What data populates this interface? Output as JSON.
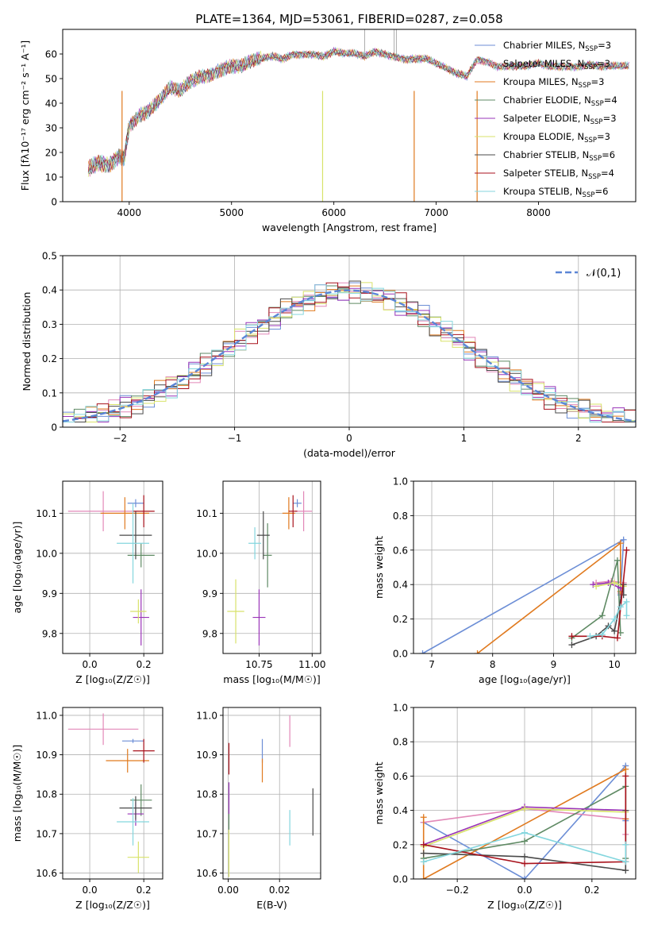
{
  "figure_title": "PLATE=1364, MJD=53061, FIBERID=0287, z=0.058",
  "models": [
    {
      "name": "Chabrier MILES",
      "nssp": "3",
      "color": "#6c8ed6"
    },
    {
      "name": "Salpeter MILES",
      "nssp": "3",
      "color": "#e288b8"
    },
    {
      "name": "Kroupa MILES",
      "nssp": "3",
      "color": "#e07a1f"
    },
    {
      "name": "Chabrier ELODIE",
      "nssp": "4",
      "color": "#5f8a64"
    },
    {
      "name": "Salpeter ELODIE",
      "nssp": "3",
      "color": "#9a34b8"
    },
    {
      "name": "Kroupa ELODIE",
      "nssp": "3",
      "color": "#d8e26a"
    },
    {
      "name": "Chabrier STELIB",
      "nssp": "6",
      "color": "#4a4a4a"
    },
    {
      "name": "Salpeter STELIB",
      "nssp": "4",
      "color": "#a8121c"
    },
    {
      "name": "Kroupa STELIB",
      "nssp": "6",
      "color": "#84d6de"
    }
  ],
  "legend_text": {
    "nssp_prefix": "N",
    "nssp_sub": "SSP",
    "eq": "="
  },
  "chart_data": [
    {
      "id": "spectrum",
      "type": "line",
      "xlabel": "wavelength [Angstrom, rest frame]",
      "ylabel": "Flux [fλ10⁻¹⁷ erg cm⁻² s⁻¹ A⁻¹]",
      "xlim": [
        3350,
        8950
      ],
      "ylim": [
        0,
        70
      ],
      "xticks": [
        4000,
        5000,
        6000,
        7000,
        8000
      ],
      "yticks": [
        0,
        10,
        20,
        30,
        40,
        50,
        60
      ],
      "grid": false,
      "legend": "top-right",
      "x": [
        3600,
        3700,
        3800,
        3900,
        3950,
        4000,
        4100,
        4200,
        4300,
        4400,
        4500,
        4600,
        4700,
        4800,
        4900,
        5000,
        5100,
        5200,
        5300,
        5400,
        5500,
        5600,
        5700,
        5800,
        5900,
        6000,
        6100,
        6200,
        6300,
        6400,
        6500,
        6600,
        6700,
        6800,
        6900,
        7000,
        7100,
        7200,
        7300,
        7400,
        7500,
        7600,
        7700,
        7800,
        7900,
        8000,
        8100,
        8200,
        8300,
        8400,
        8500,
        8600,
        8700,
        8800,
        8900
      ],
      "y": [
        13,
        16,
        15,
        19,
        18,
        31,
        35,
        37,
        41,
        46,
        45,
        49,
        51,
        52,
        54,
        55,
        55,
        57,
        58,
        59,
        58,
        60,
        60,
        60,
        59,
        61,
        60,
        60,
        59,
        61,
        60,
        59,
        58,
        58,
        58,
        56,
        54,
        52,
        51,
        58,
        57,
        55,
        55,
        55,
        55,
        56,
        55,
        55,
        55,
        55,
        56,
        55,
        55,
        55,
        55
      ]
    },
    {
      "id": "residuals",
      "type": "line",
      "xlabel": "(data-model)/error",
      "ylabel": "Normed distribution",
      "xlim": [
        -2.5,
        2.5
      ],
      "ylim": [
        0,
        0.5
      ],
      "xticks": [
        -2,
        -1,
        0,
        1,
        2
      ],
      "yticks": [
        0.0,
        0.1,
        0.2,
        0.3,
        0.4,
        0.5
      ],
      "grid": true,
      "legend": "top-right",
      "reference_label": "𝒩(0,1)",
      "x": [
        -2.5,
        -2.3,
        -2.1,
        -1.9,
        -1.7,
        -1.5,
        -1.3,
        -1.1,
        -0.9,
        -0.7,
        -0.5,
        -0.3,
        -0.1,
        0.1,
        0.3,
        0.5,
        0.7,
        0.9,
        1.1,
        1.3,
        1.5,
        1.7,
        1.9,
        2.1,
        2.3,
        2.5
      ],
      "y": [
        0.04,
        0.05,
        0.07,
        0.09,
        0.13,
        0.15,
        0.19,
        0.22,
        0.27,
        0.31,
        0.35,
        0.38,
        0.39,
        0.4,
        0.38,
        0.36,
        0.31,
        0.28,
        0.22,
        0.17,
        0.14,
        0.11,
        0.08,
        0.06,
        0.05,
        0.04
      ]
    },
    {
      "id": "age_vs_z",
      "type": "scatter",
      "xlabel": "Z [log₁₀(Z/Z☉)]",
      "ylabel": "age  [log₁₀(age/yr)]",
      "xlim": [
        -0.1,
        0.27
      ],
      "ylim": [
        9.75,
        10.18
      ],
      "xticks": [
        0.0,
        0.2
      ],
      "yticks": [
        9.8,
        9.9,
        10.0,
        10.1
      ],
      "grid": true,
      "points": [
        {
          "x": 0.17,
          "y": 10.125,
          "xerr": 0.03,
          "yerr": 0.01
        },
        {
          "x": 0.05,
          "y": 10.105,
          "xerr": 0.13,
          "yerr": 0.05
        },
        {
          "x": 0.13,
          "y": 10.1,
          "xerr": 0.09,
          "yerr": 0.04
        },
        {
          "x": 0.19,
          "y": 9.995,
          "xerr": 0.05,
          "yerr": 0.03
        },
        {
          "x": 0.19,
          "y": 9.84,
          "xerr": 0.03,
          "yerr": 0.07
        },
        {
          "x": 0.18,
          "y": 9.855,
          "xerr": 0.03,
          "yerr": 0.03
        },
        {
          "x": 0.17,
          "y": 10.045,
          "xerr": 0.06,
          "yerr": 0.06
        },
        {
          "x": 0.2,
          "y": 10.105,
          "xerr": 0.04,
          "yerr": 0.04
        },
        {
          "x": 0.16,
          "y": 10.025,
          "xerr": 0.06,
          "yerr": 0.1
        }
      ]
    },
    {
      "id": "age_vs_mass",
      "type": "scatter",
      "xlabel": "mass [log₁₀(M/M☉)]",
      "ylabel": "",
      "xlim": [
        10.58,
        11.04
      ],
      "ylim": [
        9.75,
        10.18
      ],
      "xticks": [
        10.75,
        11.0
      ],
      "yticks": [
        9.8,
        9.9,
        10.0,
        10.1
      ],
      "grid": true,
      "points": [
        {
          "x": 10.93,
          "y": 10.125,
          "xerr": 0.02,
          "yerr": 0.01
        },
        {
          "x": 10.96,
          "y": 10.105,
          "xerr": 0.04,
          "yerr": 0.05
        },
        {
          "x": 10.89,
          "y": 10.1,
          "xerr": 0.03,
          "yerr": 0.04
        },
        {
          "x": 10.79,
          "y": 9.995,
          "xerr": 0.02,
          "yerr": 0.08
        },
        {
          "x": 10.75,
          "y": 9.84,
          "xerr": 0.03,
          "yerr": 0.07
        },
        {
          "x": 10.64,
          "y": 9.855,
          "xerr": 0.04,
          "yerr": 0.08
        },
        {
          "x": 10.77,
          "y": 10.045,
          "xerr": 0.03,
          "yerr": 0.06
        },
        {
          "x": 10.91,
          "y": 10.105,
          "xerr": 0.02,
          "yerr": 0.04
        },
        {
          "x": 10.73,
          "y": 10.025,
          "xerr": 0.03,
          "yerr": 0.04
        }
      ]
    },
    {
      "id": "weight_vs_age",
      "type": "line",
      "xlabel": "age  [log₁₀(age/yr)]",
      "ylabel": "mass weight",
      "xlim": [
        6.7,
        10.35
      ],
      "ylim": [
        0,
        1.0
      ],
      "xticks": [
        7,
        8,
        9,
        10
      ],
      "yticks": [
        0.0,
        0.2,
        0.4,
        0.6,
        0.8,
        1.0
      ],
      "grid": true,
      "series": [
        {
          "x": [
            6.85,
            10.15,
            10.1
          ],
          "y": [
            0.0,
            0.66,
            0.34
          ]
        },
        {
          "x": [
            9.7,
            9.95,
            10.15,
            10.1
          ],
          "y": [
            0.41,
            0.42,
            0.41,
            0.35
          ]
        },
        {
          "x": [
            7.75,
            10.1,
            10.1
          ],
          "y": [
            0.0,
            0.64,
            0.36
          ]
        },
        {
          "x": [
            9.3,
            9.8,
            10.05,
            10.1
          ],
          "y": [
            0.09,
            0.22,
            0.54,
            0.12
          ]
        },
        {
          "x": [
            9.65,
            9.9,
            10.1
          ],
          "y": [
            0.4,
            0.41,
            0.38
          ]
        },
        {
          "x": [
            9.7,
            10.0,
            10.15
          ],
          "y": [
            0.39,
            0.41,
            0.39
          ]
        },
        {
          "x": [
            9.3,
            9.7,
            9.9,
            10.0,
            10.15,
            10.15
          ],
          "y": [
            0.05,
            0.1,
            0.16,
            0.13,
            0.4,
            0.34
          ]
        },
        {
          "x": [
            9.3,
            9.8,
            10.05,
            10.2
          ],
          "y": [
            0.1,
            0.1,
            0.09,
            0.6
          ]
        },
        {
          "x": [
            9.6,
            9.8,
            10.0,
            10.1,
            10.2,
            10.2
          ],
          "y": [
            0.1,
            0.11,
            0.2,
            0.27,
            0.3,
            0.22
          ]
        }
      ]
    },
    {
      "id": "mass_vs_z",
      "type": "scatter",
      "xlabel": "Z [log₁₀(Z/Z☉)]",
      "ylabel": "mass [log₁₀(M/M☉)]",
      "xlim": [
        -0.1,
        0.27
      ],
      "ylim": [
        10.585,
        11.02
      ],
      "xticks": [
        0.0,
        0.2
      ],
      "yticks": [
        10.6,
        10.7,
        10.8,
        10.9,
        11.0
      ],
      "grid": true,
      "points": [
        {
          "x": 0.16,
          "y": 10.935,
          "xerr": 0.04,
          "yerr": 0.005
        },
        {
          "x": 0.05,
          "y": 10.965,
          "xerr": 0.13,
          "yerr": 0.04
        },
        {
          "x": 0.14,
          "y": 10.885,
          "xerr": 0.08,
          "yerr": 0.03
        },
        {
          "x": 0.19,
          "y": 10.785,
          "xerr": 0.04,
          "yerr": 0.04
        },
        {
          "x": 0.17,
          "y": 10.75,
          "xerr": 0.03,
          "yerr": 0.03
        },
        {
          "x": 0.18,
          "y": 10.64,
          "xerr": 0.04,
          "yerr": 0.04
        },
        {
          "x": 0.17,
          "y": 10.765,
          "xerr": 0.06,
          "yerr": 0.03
        },
        {
          "x": 0.2,
          "y": 10.91,
          "xerr": 0.04,
          "yerr": 0.03
        },
        {
          "x": 0.16,
          "y": 10.73,
          "xerr": 0.06,
          "yerr": 0.06
        }
      ]
    },
    {
      "id": "mass_vs_ebv",
      "type": "scatter",
      "xlabel": "E(B-V)",
      "ylabel": "",
      "xlim": [
        -0.002,
        0.036
      ],
      "ylim": [
        10.585,
        11.02
      ],
      "xticks": [
        0.0,
        0.02
      ],
      "yticks": [
        10.6,
        10.7,
        10.8,
        10.9,
        11.0
      ],
      "grid": true,
      "points": [
        {
          "x": 0.0133,
          "y": 10.91,
          "xerr": 0,
          "yerr": 0.03
        },
        {
          "x": 0.024,
          "y": 10.96,
          "xerr": 0,
          "yerr": 0.04
        },
        {
          "x": 0.0133,
          "y": 10.86,
          "xerr": 0,
          "yerr": 0.03
        },
        {
          "x": 0.0003,
          "y": 10.77,
          "xerr": 0,
          "yerr": 0.06
        },
        {
          "x": 0.0003,
          "y": 10.79,
          "xerr": 0,
          "yerr": 0.04
        },
        {
          "x": 0.0003,
          "y": 10.65,
          "xerr": 0,
          "yerr": 0.06
        },
        {
          "x": 0.033,
          "y": 10.755,
          "xerr": 0,
          "yerr": 0.06
        },
        {
          "x": 0.0003,
          "y": 10.89,
          "xerr": 0,
          "yerr": 0.04
        },
        {
          "x": 0.024,
          "y": 10.715,
          "xerr": 0,
          "yerr": 0.045
        }
      ]
    },
    {
      "id": "weight_vs_z",
      "type": "line",
      "xlabel": "Z [log₁₀(Z/Z☉)]",
      "ylabel": "mass weight",
      "xlim": [
        -0.33,
        0.33
      ],
      "ylim": [
        0,
        1.0
      ],
      "xticks": [
        -0.2,
        0.0,
        0.2
      ],
      "yticks": [
        0.0,
        0.2,
        0.4,
        0.6,
        0.8,
        1.0
      ],
      "grid": true,
      "series": [
        {
          "x": [
            -0.3,
            0.0,
            0.3,
            0.3
          ],
          "y": [
            0.33,
            0.0,
            0.66,
            0.34
          ]
        },
        {
          "x": [
            -0.3,
            0.0,
            0.3,
            0.3
          ],
          "y": [
            0.33,
            0.41,
            0.35,
            0.26
          ]
        },
        {
          "x": [
            -0.3,
            -0.3,
            0.3,
            0.3
          ],
          "y": [
            0.36,
            0.0,
            0.64,
            0.35
          ]
        },
        {
          "x": [
            -0.3,
            0.0,
            0.3,
            0.3
          ],
          "y": [
            0.12,
            0.22,
            0.54,
            0.12
          ]
        },
        {
          "x": [
            -0.3,
            0.0,
            0.3
          ],
          "y": [
            0.2,
            0.42,
            0.4
          ]
        },
        {
          "x": [
            -0.3,
            0.0,
            0.3
          ],
          "y": [
            0.19,
            0.41,
            0.39
          ]
        },
        {
          "x": [
            -0.3,
            0.0,
            0.3,
            0.3
          ],
          "y": [
            0.15,
            0.13,
            0.05,
            0.4
          ]
        },
        {
          "x": [
            -0.3,
            0.0,
            0.3,
            0.3
          ],
          "y": [
            0.2,
            0.09,
            0.1,
            0.6
          ]
        },
        {
          "x": [
            -0.3,
            0.0,
            0.3,
            0.3
          ],
          "y": [
            0.1,
            0.27,
            0.1,
            0.2
          ]
        }
      ]
    }
  ]
}
